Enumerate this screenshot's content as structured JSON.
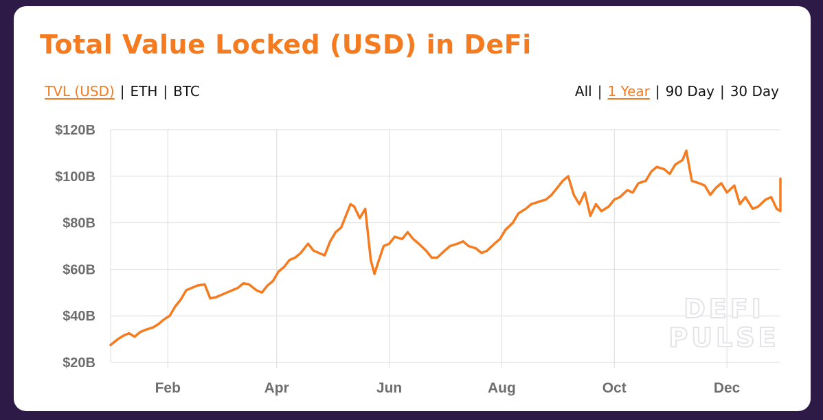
{
  "title": "Total Value Locked (USD) in DeFi",
  "metric_toggles": [
    {
      "label": "TVL (USD)",
      "active": true
    },
    {
      "label": "ETH",
      "active": false
    },
    {
      "label": "BTC",
      "active": false
    }
  ],
  "range_toggles": [
    {
      "label": "All",
      "active": false
    },
    {
      "label": "1 Year",
      "active": true
    },
    {
      "label": "90 Day",
      "active": false
    },
    {
      "label": "30 Day",
      "active": false
    }
  ],
  "separator": "|",
  "watermark": [
    "DEFI",
    "PULSE"
  ],
  "colors": {
    "accent": "#f47b20",
    "line": "#f47b20",
    "grid": "#dddddd",
    "axis_text": "#6e6e6e",
    "background": "#2e1a47"
  },
  "chart_data": {
    "type": "line",
    "title": "Total Value Locked (USD) in DeFi",
    "xlabel": "",
    "ylabel": "",
    "ylim": [
      20,
      120
    ],
    "y_ticks": [
      {
        "value": 20,
        "label": "$20B"
      },
      {
        "value": 40,
        "label": "$40B"
      },
      {
        "value": 60,
        "label": "$60B"
      },
      {
        "value": 80,
        "label": "$80B"
      },
      {
        "value": 100,
        "label": "$100B"
      },
      {
        "value": 120,
        "label": "$120B"
      }
    ],
    "x_range": [
      "2021-01-01",
      "2021-12-30"
    ],
    "x_ticks": [
      {
        "date": "2021-02-01",
        "label": "Feb"
      },
      {
        "date": "2021-04-01",
        "label": "Apr"
      },
      {
        "date": "2021-06-01",
        "label": "Jun"
      },
      {
        "date": "2021-08-01",
        "label": "Aug"
      },
      {
        "date": "2021-10-01",
        "label": "Oct"
      },
      {
        "date": "2021-12-01",
        "label": "Dec"
      }
    ],
    "grid": true,
    "legend": "none",
    "series": [
      {
        "x": [
          "2021-01-01",
          "2021-01-05",
          "2021-01-08",
          "2021-01-11",
          "2021-01-14",
          "2021-01-17",
          "2021-01-20",
          "2021-01-24",
          "2021-01-27",
          "2021-01-30",
          "2021-02-02",
          "2021-02-05",
          "2021-02-08",
          "2021-02-11",
          "2021-02-14",
          "2021-02-17",
          "2021-02-21",
          "2021-02-24",
          "2021-02-27",
          "2021-03-02",
          "2021-03-05",
          "2021-03-08",
          "2021-03-11",
          "2021-03-14",
          "2021-03-17",
          "2021-03-21",
          "2021-03-24",
          "2021-03-27",
          "2021-03-30",
          "2021-04-02",
          "2021-04-05",
          "2021-04-08",
          "2021-04-11",
          "2021-04-14",
          "2021-04-18",
          "2021-04-21",
          "2021-04-24",
          "2021-04-27",
          "2021-04-30",
          "2021-05-03",
          "2021-05-06",
          "2021-05-09",
          "2021-05-11",
          "2021-05-13",
          "2021-05-16",
          "2021-05-19",
          "2021-05-22",
          "2021-05-24",
          "2021-05-26",
          "2021-05-29",
          "2021-06-01",
          "2021-06-04",
          "2021-06-08",
          "2021-06-11",
          "2021-06-14",
          "2021-06-17",
          "2021-06-21",
          "2021-06-24",
          "2021-06-27",
          "2021-07-01",
          "2021-07-04",
          "2021-07-08",
          "2021-07-11",
          "2021-07-14",
          "2021-07-18",
          "2021-07-21",
          "2021-07-24",
          "2021-07-28",
          "2021-07-31",
          "2021-08-03",
          "2021-08-07",
          "2021-08-10",
          "2021-08-14",
          "2021-08-17",
          "2021-08-21",
          "2021-08-25",
          "2021-08-28",
          "2021-08-31",
          "2021-09-03",
          "2021-09-06",
          "2021-09-09",
          "2021-09-12",
          "2021-09-15",
          "2021-09-18",
          "2021-09-21",
          "2021-09-24",
          "2021-09-28",
          "2021-10-01",
          "2021-10-04",
          "2021-10-08",
          "2021-10-11",
          "2021-10-14",
          "2021-10-18",
          "2021-10-21",
          "2021-10-24",
          "2021-10-28",
          "2021-10-31",
          "2021-11-03",
          "2021-11-07",
          "2021-11-09",
          "2021-11-12",
          "2021-11-16",
          "2021-11-19",
          "2021-11-22",
          "2021-11-25",
          "2021-11-28",
          "2021-12-01",
          "2021-12-05",
          "2021-12-08",
          "2021-12-11",
          "2021-12-15",
          "2021-12-18",
          "2021-12-22",
          "2021-12-25",
          "2021-12-28",
          "2021-12-30",
          "2021-12-30"
        ],
        "values": [
          27.5,
          30,
          31.5,
          32.5,
          31,
          33,
          34,
          35,
          36.5,
          38.5,
          40,
          44,
          47,
          51,
          52,
          53,
          53.5,
          47.5,
          48,
          49,
          50,
          51,
          52,
          54,
          53.5,
          51,
          50,
          53,
          55,
          59,
          61,
          64,
          65,
          67,
          71,
          68,
          67,
          66,
          72,
          76,
          78,
          84,
          88,
          87,
          82,
          86,
          64,
          58,
          63,
          70,
          71,
          74,
          73,
          76,
          73,
          71,
          68,
          65,
          65,
          68,
          70,
          71,
          72,
          70,
          69,
          67,
          68,
          71,
          73,
          77,
          80,
          84,
          86,
          88,
          89,
          90,
          92,
          95,
          98,
          100,
          92,
          88,
          93,
          83,
          88,
          85,
          87,
          90,
          91,
          94,
          93,
          97,
          98,
          102,
          104,
          103,
          101,
          105,
          107,
          111,
          98,
          97,
          96,
          92,
          95,
          97,
          93,
          96,
          88,
          91,
          86,
          87,
          90,
          91,
          86,
          85,
          99
        ]
      }
    ]
  }
}
